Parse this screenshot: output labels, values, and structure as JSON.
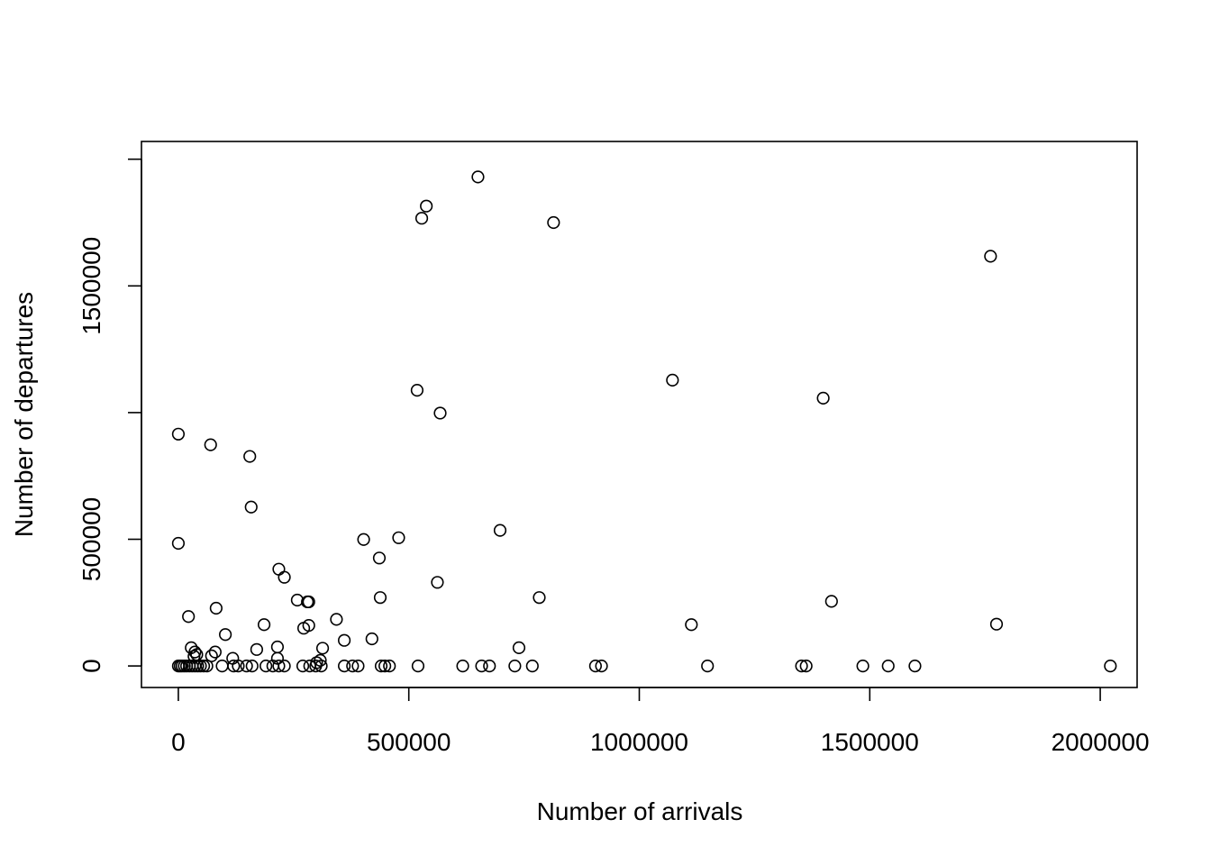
{
  "chart_data": {
    "type": "scatter",
    "title": "",
    "xlabel": "Number of arrivals",
    "ylabel": "Number of departures",
    "xlim": [
      -80000,
      2080000
    ],
    "ylim": [
      -85000,
      2070000
    ],
    "x_ticks": [
      0,
      500000,
      1000000,
      1500000,
      2000000
    ],
    "x_tick_labels": [
      "0",
      "500000",
      "1000000",
      "1500000",
      "2000000"
    ],
    "y_ticks": [
      0,
      500000,
      1000000,
      1500000,
      2000000
    ],
    "y_tick_labels": [
      "0",
      "500000",
      "",
      "1500000",
      ""
    ],
    "grid": false,
    "marker": "open-circle",
    "points": [
      [
        650000,
        1930000
      ],
      [
        538000,
        1815000
      ],
      [
        528000,
        1767000
      ],
      [
        814000,
        1750000
      ],
      [
        1762000,
        1617000
      ],
      [
        1072000,
        1128000
      ],
      [
        518000,
        1088000
      ],
      [
        1399000,
        1057000
      ],
      [
        568000,
        998000
      ],
      [
        0,
        915000
      ],
      [
        70000,
        873000
      ],
      [
        155000,
        827000
      ],
      [
        158000,
        627000
      ],
      [
        698000,
        535000
      ],
      [
        478000,
        506000
      ],
      [
        402000,
        499000
      ],
      [
        0,
        484000
      ],
      [
        436000,
        426000
      ],
      [
        218000,
        382000
      ],
      [
        230000,
        350000
      ],
      [
        562000,
        330000
      ],
      [
        783000,
        270000
      ],
      [
        438000,
        270000
      ],
      [
        258000,
        260000
      ],
      [
        1417000,
        255000
      ],
      [
        280000,
        253000
      ],
      [
        283000,
        253000
      ],
      [
        82000,
        228000
      ],
      [
        22000,
        195000
      ],
      [
        343000,
        184000
      ],
      [
        186000,
        163000
      ],
      [
        1113000,
        163000
      ],
      [
        1775000,
        165000
      ],
      [
        283000,
        160000
      ],
      [
        272000,
        149000
      ],
      [
        102000,
        124000
      ],
      [
        420000,
        107000
      ],
      [
        360000,
        101000
      ],
      [
        739000,
        72000
      ],
      [
        313000,
        70000
      ],
      [
        170000,
        65000
      ],
      [
        215000,
        75000
      ],
      [
        80000,
        55000
      ],
      [
        28000,
        72000
      ],
      [
        36000,
        55000
      ],
      [
        40000,
        45000
      ],
      [
        34000,
        38000
      ],
      [
        72000,
        40000
      ],
      [
        118000,
        30000
      ],
      [
        215000,
        30000
      ],
      [
        308000,
        22000
      ],
      [
        300000,
        13000
      ],
      [
        0,
        0
      ],
      [
        4000,
        0
      ],
      [
        8000,
        0
      ],
      [
        13000,
        0
      ],
      [
        18000,
        0
      ],
      [
        24000,
        0
      ],
      [
        30000,
        0
      ],
      [
        36000,
        0
      ],
      [
        42000,
        0
      ],
      [
        48000,
        0
      ],
      [
        55000,
        0
      ],
      [
        62000,
        0
      ],
      [
        95000,
        0
      ],
      [
        120000,
        0
      ],
      [
        130000,
        0
      ],
      [
        148000,
        0
      ],
      [
        160000,
        0
      ],
      [
        190000,
        0
      ],
      [
        205000,
        0
      ],
      [
        218000,
        0
      ],
      [
        230000,
        0
      ],
      [
        270000,
        0
      ],
      [
        285000,
        0
      ],
      [
        298000,
        0
      ],
      [
        310000,
        0
      ],
      [
        360000,
        0
      ],
      [
        378000,
        0
      ],
      [
        390000,
        0
      ],
      [
        440000,
        0
      ],
      [
        448000,
        0
      ],
      [
        458000,
        0
      ],
      [
        520000,
        0
      ],
      [
        617000,
        0
      ],
      [
        658000,
        0
      ],
      [
        675000,
        0
      ],
      [
        730000,
        0
      ],
      [
        768000,
        0
      ],
      [
        905000,
        0
      ],
      [
        918000,
        0
      ],
      [
        1148000,
        0
      ],
      [
        1352000,
        0
      ],
      [
        1362000,
        0
      ],
      [
        1485000,
        0
      ],
      [
        1540000,
        0
      ],
      [
        1598000,
        0
      ],
      [
        2022000,
        0
      ]
    ]
  }
}
